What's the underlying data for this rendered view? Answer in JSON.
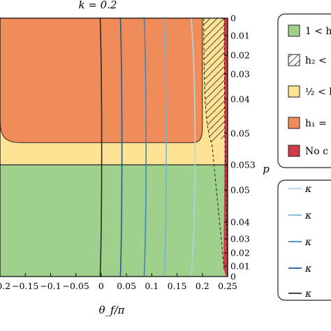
{
  "chart_data": {
    "type": "area",
    "title": "k = 0.2",
    "xlabel": "θ_f/π",
    "ylabel": "p",
    "xlim": [
      -0.2,
      0.25
    ],
    "x_ticks": [
      "−0.2",
      "−0.15",
      "−0.1",
      "−0.05",
      "0",
      "0.05",
      "0.1",
      "0.15",
      "0.2",
      "0.25"
    ],
    "x_tick_values": [
      -0.2,
      -0.15,
      -0.1,
      -0.05,
      0,
      0.05,
      0.1,
      0.15,
      0.2,
      0.25
    ],
    "y_ticks": [
      "0",
      "0.01",
      "0.02",
      "0.03",
      "0.04",
      "0.05",
      "0.053",
      "0.05",
      "0.04",
      "0.03",
      "0.02",
      "0.01",
      "0"
    ],
    "regions": [
      {
        "legend_label": "1 < h",
        "color": "#9fd18c"
      },
      {
        "legend_label": "h₂ <",
        "color": "#ffffff",
        "pattern": "hatch"
      },
      {
        "legend_label": "½ < h",
        "color": "#fde393"
      },
      {
        "legend_label": "h₁ =",
        "color": "#f08c5a"
      },
      {
        "legend_label": "No c",
        "color": "#cf3a48"
      }
    ],
    "boundaries": {
      "middle_line_p": 0.053,
      "orange_bottom_p": 0.045,
      "orange_right_theta": 0.2,
      "dashed_theta_top": 0.219,
      "dashed_theta_bottom": 0.232
    },
    "kappa_lines": [
      {
        "label": "κ",
        "color": "#a8d8e8",
        "theta": [
          0.178,
          0.188,
          0.178
        ]
      },
      {
        "label": "κ",
        "color": "#72b6d8",
        "theta": [
          0.125,
          0.13,
          0.125
        ]
      },
      {
        "label": "κ",
        "color": "#3a88c0",
        "theta": [
          0.085,
          0.09,
          0.085
        ]
      },
      {
        "label": "κ",
        "color": "#1e5d92",
        "theta": [
          0.038,
          0.042,
          0.038
        ]
      },
      {
        "label": "κ",
        "color": "#2a2a2a",
        "theta": [
          -0.002,
          0.002,
          -0.002
        ]
      }
    ]
  }
}
